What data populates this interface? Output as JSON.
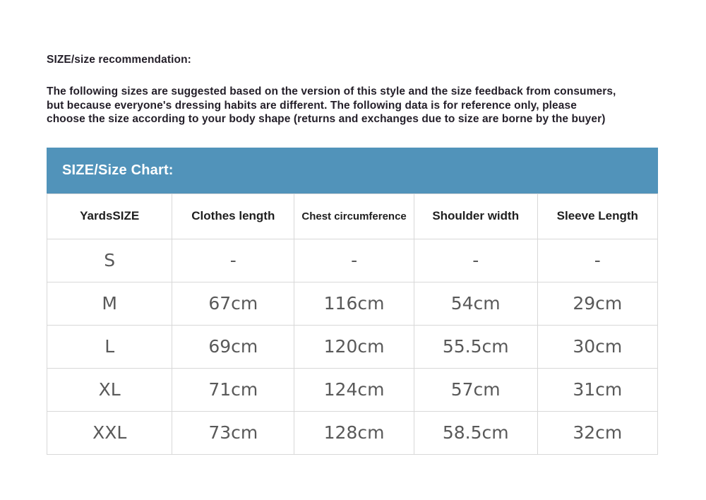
{
  "page": {
    "heading": "SIZE/size recommendation:",
    "intro_lines": [
      "The following sizes are suggested based on the version of this style and the size feedback from consumers,",
      "but because everyone's dressing habits are different. The following data is for reference only, please",
      "choose the size according to your body shape (returns and exchanges due to size are borne by the buyer)"
    ]
  },
  "size_chart": {
    "title": "SIZE/Size Chart:",
    "accent_color": "#5193ba",
    "border_color": "#d8d8d8",
    "columns": [
      "YardsSIZE",
      "Clothes length",
      "Chest circumference",
      "Shoulder width",
      "Sleeve Length"
    ],
    "rows": [
      {
        "size": "S",
        "values": [
          "-",
          "-",
          "-",
          "-"
        ]
      },
      {
        "size": "M",
        "values": [
          "67cm",
          "116cm",
          "54cm",
          "29cm"
        ]
      },
      {
        "size": "L",
        "values": [
          "69cm",
          "120cm",
          "55.5cm",
          "30cm"
        ]
      },
      {
        "size": "XL",
        "values": [
          "71cm",
          "124cm",
          "57cm",
          "31cm"
        ]
      },
      {
        "size": "XXL",
        "values": [
          "73cm",
          "128cm",
          "58.5cm",
          "32cm"
        ]
      }
    ]
  }
}
